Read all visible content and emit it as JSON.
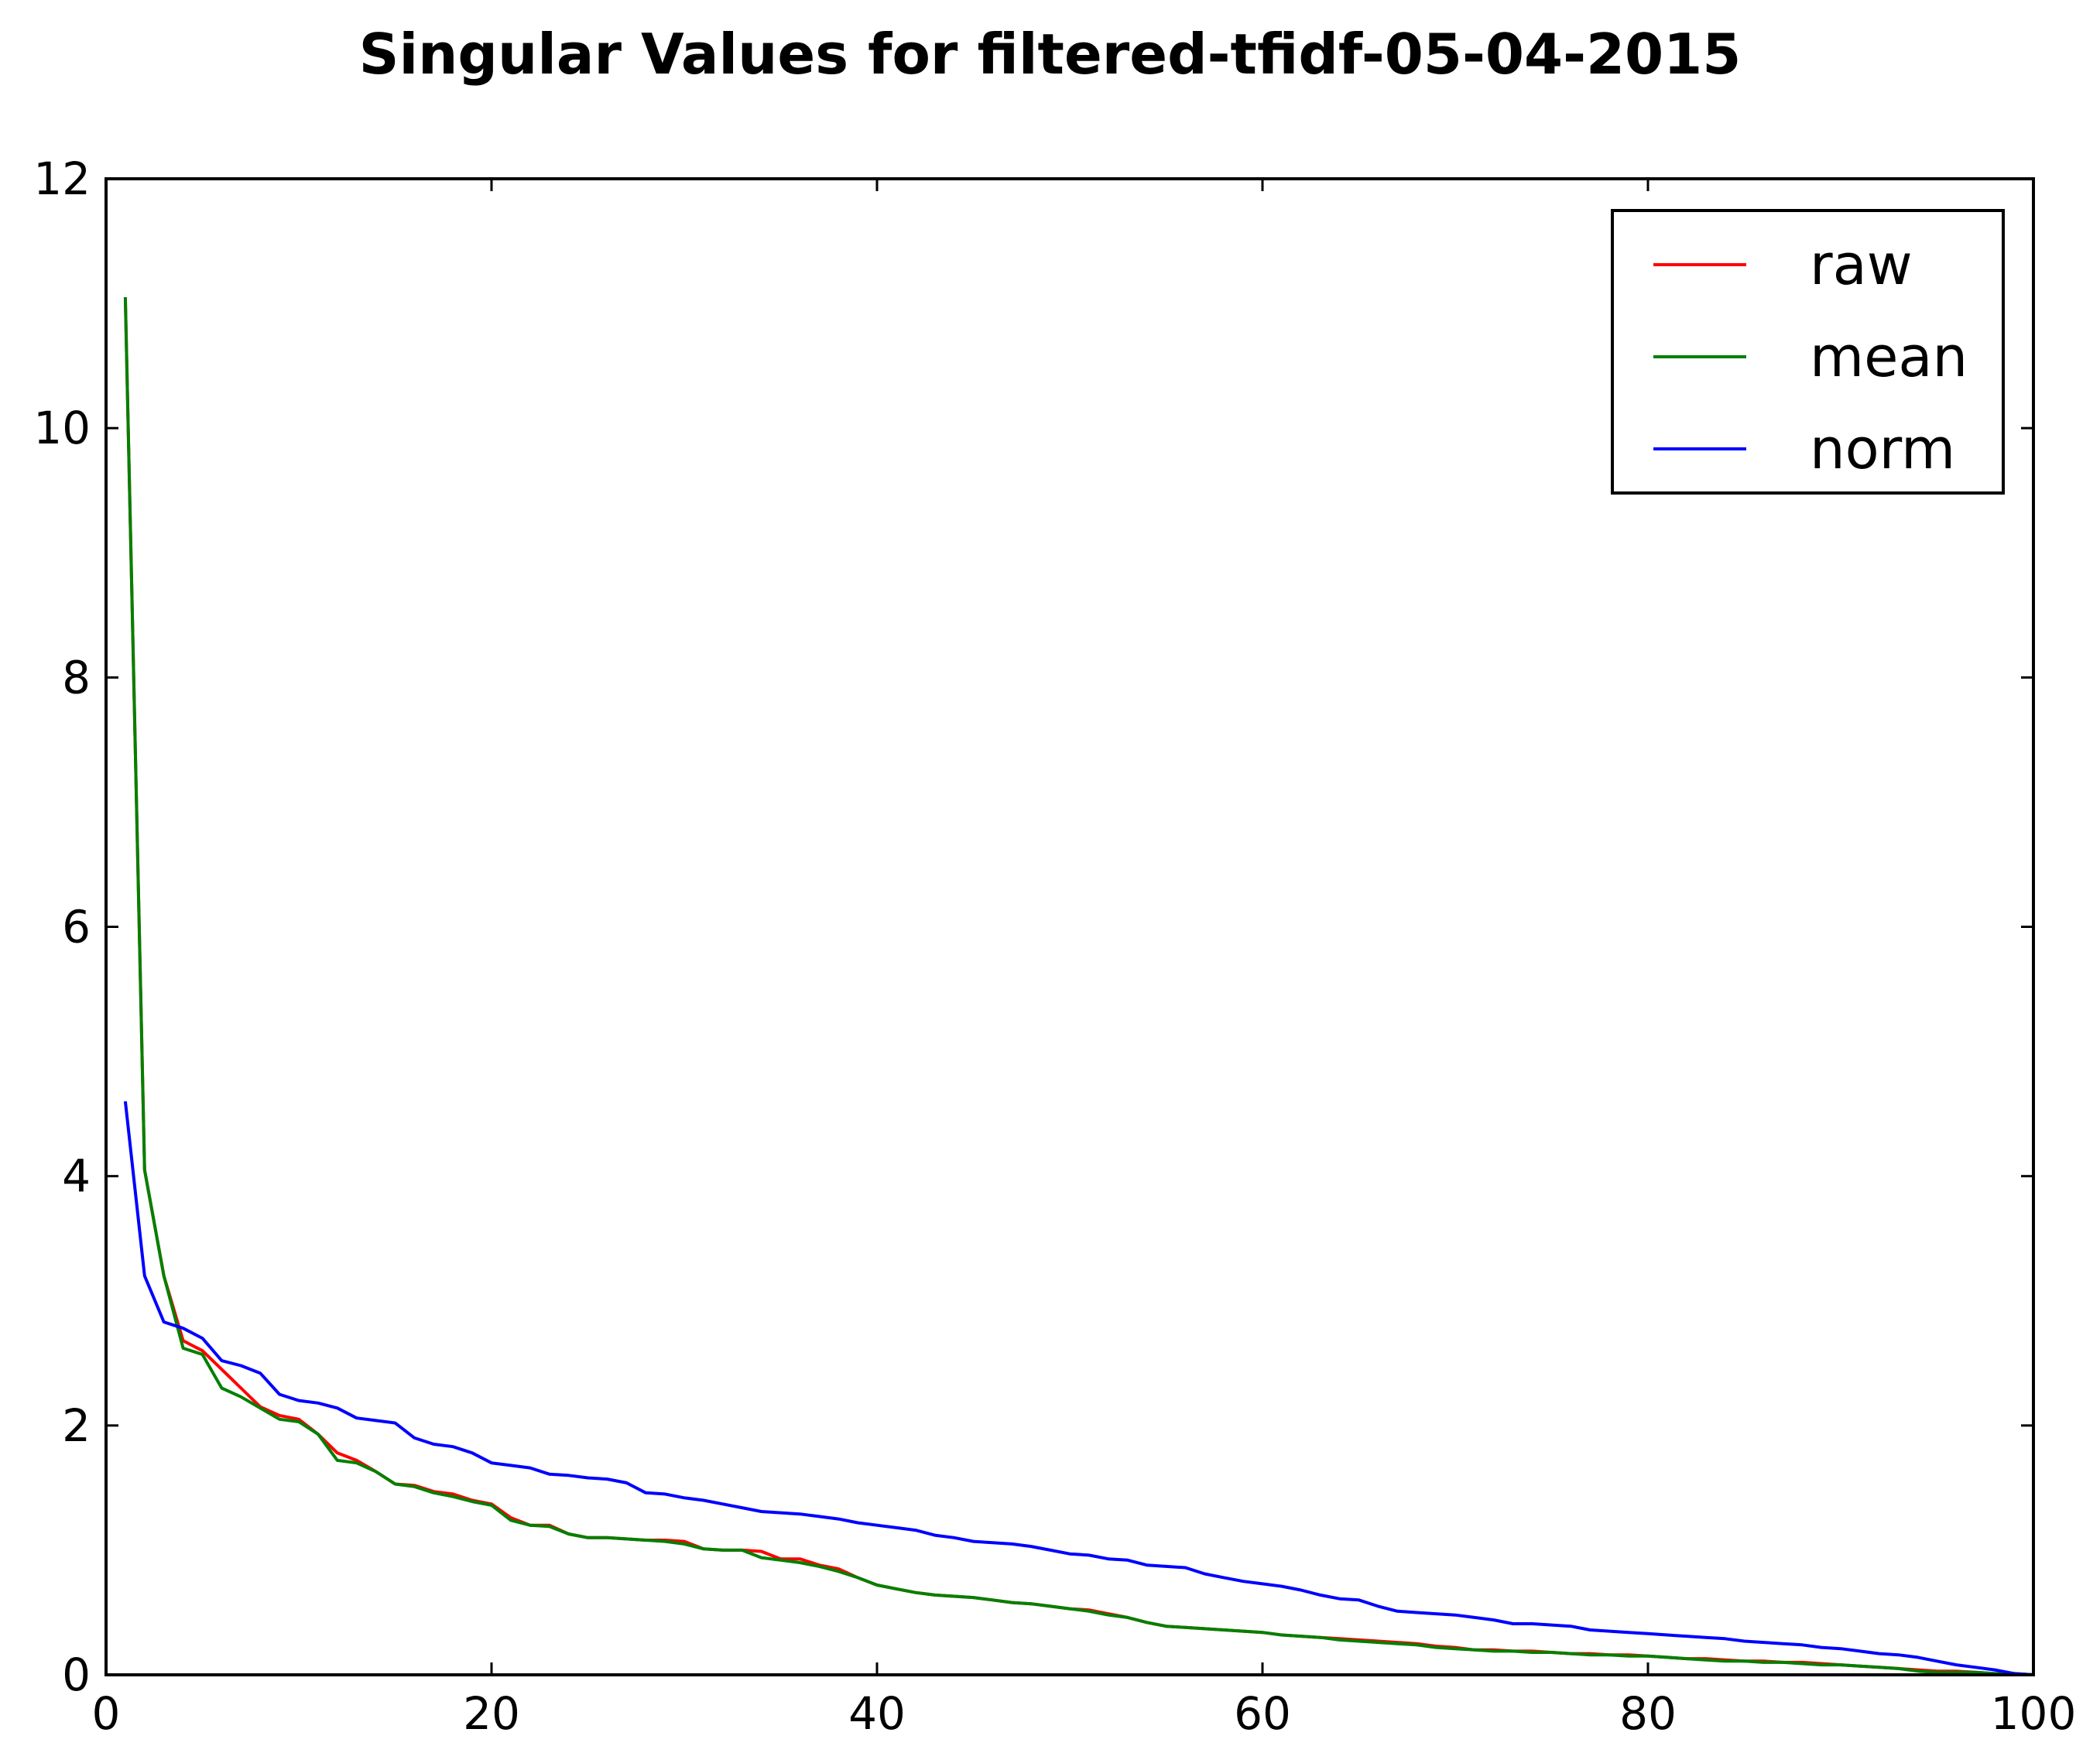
{
  "chart_data": {
    "type": "line",
    "title": "Singular Values for filtered-tfidf-05-04-2015",
    "xlabel": "",
    "ylabel": "",
    "xlim": [
      0,
      100
    ],
    "ylim": [
      0,
      12
    ],
    "xticks": [
      0,
      20,
      40,
      60,
      80,
      100
    ],
    "yticks": [
      0,
      2,
      4,
      6,
      8,
      10,
      12
    ],
    "xtick_labels": [
      "0",
      "20",
      "40",
      "60",
      "80",
      "100"
    ],
    "ytick_labels": [
      "0",
      "2",
      "4",
      "6",
      "8",
      "10",
      "12"
    ],
    "grid": false,
    "legend_position": "top-right",
    "x": [
      1,
      2,
      3,
      4,
      5,
      6,
      7,
      8,
      9,
      10,
      11,
      12,
      13,
      14,
      15,
      16,
      17,
      18,
      19,
      20,
      21,
      22,
      23,
      24,
      25,
      26,
      27,
      28,
      29,
      30,
      31,
      32,
      33,
      34,
      35,
      36,
      37,
      38,
      39,
      40,
      41,
      42,
      43,
      44,
      45,
      46,
      47,
      48,
      49,
      50,
      51,
      52,
      53,
      54,
      55,
      56,
      57,
      58,
      59,
      60,
      61,
      62,
      63,
      64,
      65,
      66,
      67,
      68,
      69,
      70,
      71,
      72,
      73,
      74,
      75,
      76,
      77,
      78,
      79,
      80,
      81,
      82,
      83,
      84,
      85,
      86,
      87,
      88,
      89,
      90,
      91,
      92,
      93,
      94,
      95,
      96,
      97,
      98,
      99,
      100
    ],
    "series": [
      {
        "name": "raw",
        "color": "#ff0000",
        "values": [
          11.05,
          4.05,
          3.2,
          2.68,
          2.6,
          2.45,
          2.3,
          2.15,
          2.08,
          2.05,
          1.93,
          1.78,
          1.72,
          1.63,
          1.53,
          1.52,
          1.47,
          1.45,
          1.4,
          1.37,
          1.26,
          1.2,
          1.2,
          1.13,
          1.1,
          1.1,
          1.09,
          1.08,
          1.08,
          1.07,
          1.01,
          1.0,
          1.0,
          0.99,
          0.93,
          0.93,
          0.88,
          0.85,
          0.78,
          0.72,
          0.69,
          0.66,
          0.64,
          0.63,
          0.62,
          0.6,
          0.58,
          0.57,
          0.55,
          0.53,
          0.52,
          0.49,
          0.46,
          0.42,
          0.39,
          0.38,
          0.37,
          0.36,
          0.35,
          0.34,
          0.32,
          0.31,
          0.3,
          0.29,
          0.28,
          0.27,
          0.26,
          0.25,
          0.23,
          0.22,
          0.2,
          0.2,
          0.19,
          0.19,
          0.18,
          0.17,
          0.17,
          0.16,
          0.16,
          0.15,
          0.14,
          0.13,
          0.13,
          0.12,
          0.11,
          0.11,
          0.1,
          0.1,
          0.09,
          0.08,
          0.07,
          0.06,
          0.05,
          0.04,
          0.03,
          0.03,
          0.02,
          0.01,
          0.01,
          0.0
        ]
      },
      {
        "name": "mean",
        "color": "#008000",
        "values": [
          11.05,
          4.05,
          3.2,
          2.62,
          2.57,
          2.3,
          2.23,
          2.14,
          2.05,
          2.03,
          1.93,
          1.72,
          1.7,
          1.63,
          1.53,
          1.51,
          1.46,
          1.43,
          1.39,
          1.36,
          1.24,
          1.2,
          1.19,
          1.13,
          1.1,
          1.1,
          1.09,
          1.08,
          1.07,
          1.05,
          1.01,
          1.0,
          1.0,
          0.94,
          0.92,
          0.9,
          0.87,
          0.83,
          0.78,
          0.72,
          0.69,
          0.66,
          0.64,
          0.63,
          0.62,
          0.6,
          0.58,
          0.57,
          0.55,
          0.53,
          0.51,
          0.48,
          0.46,
          0.42,
          0.39,
          0.38,
          0.37,
          0.36,
          0.35,
          0.34,
          0.32,
          0.31,
          0.3,
          0.28,
          0.27,
          0.26,
          0.25,
          0.24,
          0.22,
          0.21,
          0.2,
          0.19,
          0.19,
          0.18,
          0.18,
          0.17,
          0.16,
          0.16,
          0.15,
          0.15,
          0.14,
          0.13,
          0.12,
          0.11,
          0.11,
          0.1,
          0.1,
          0.09,
          0.08,
          0.08,
          0.07,
          0.06,
          0.05,
          0.03,
          0.02,
          0.02,
          0.02,
          0.01,
          0.01,
          0.0
        ]
      },
      {
        "name": "norm",
        "color": "#0000ff",
        "values": [
          4.6,
          3.2,
          2.83,
          2.78,
          2.7,
          2.52,
          2.48,
          2.42,
          2.25,
          2.2,
          2.18,
          2.14,
          2.06,
          2.04,
          2.02,
          1.9,
          1.85,
          1.83,
          1.78,
          1.7,
          1.68,
          1.66,
          1.61,
          1.6,
          1.58,
          1.57,
          1.54,
          1.46,
          1.45,
          1.42,
          1.4,
          1.37,
          1.34,
          1.31,
          1.3,
          1.29,
          1.27,
          1.25,
          1.22,
          1.2,
          1.18,
          1.16,
          1.12,
          1.1,
          1.07,
          1.06,
          1.05,
          1.03,
          1.0,
          0.97,
          0.96,
          0.93,
          0.92,
          0.88,
          0.87,
          0.86,
          0.81,
          0.78,
          0.75,
          0.73,
          0.71,
          0.68,
          0.64,
          0.61,
          0.6,
          0.55,
          0.51,
          0.5,
          0.49,
          0.48,
          0.46,
          0.44,
          0.41,
          0.41,
          0.4,
          0.39,
          0.36,
          0.35,
          0.34,
          0.33,
          0.32,
          0.31,
          0.3,
          0.29,
          0.27,
          0.26,
          0.25,
          0.24,
          0.22,
          0.21,
          0.19,
          0.17,
          0.16,
          0.14,
          0.11,
          0.08,
          0.06,
          0.04,
          0.01,
          0.0
        ]
      }
    ]
  }
}
